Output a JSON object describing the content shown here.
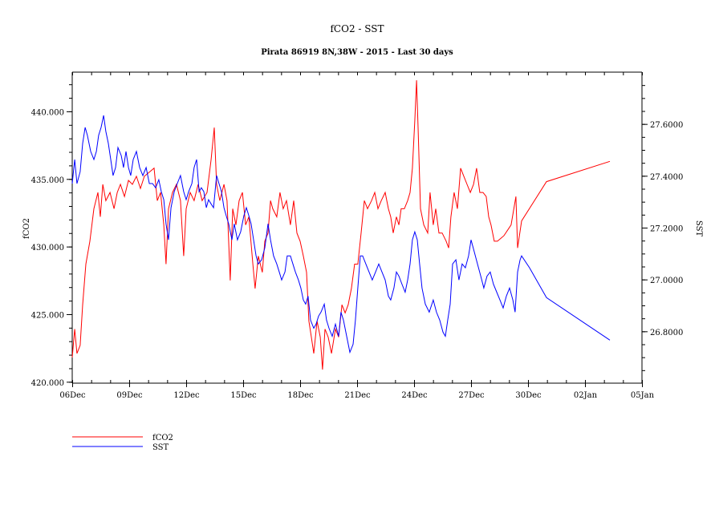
{
  "chart_data": {
    "type": "line",
    "title": "fCO2 - SST",
    "subtitle": "Pirata 86919 8N,38W - 2015 - Last 30 days",
    "xlabel": "",
    "ylabel": "fCO2",
    "y2label": "SST",
    "x_unit": "days since 06Dec",
    "xlim": [
      0,
      30
    ],
    "ylim": [
      419.9,
      442.9
    ],
    "y2lim": [
      26.6,
      27.8
    ],
    "x_ticks": [
      {
        "day": 0,
        "label": "06Dec"
      },
      {
        "day": 3,
        "label": "09Dec"
      },
      {
        "day": 6,
        "label": "12Dec"
      },
      {
        "day": 9,
        "label": "15Dec"
      },
      {
        "day": 12,
        "label": "18Dec"
      },
      {
        "day": 15,
        "label": "21Dec"
      },
      {
        "day": 18,
        "label": "24Dec"
      },
      {
        "day": 21,
        "label": "27Dec"
      },
      {
        "day": 24,
        "label": "30Dec"
      },
      {
        "day": 27,
        "label": "02Jan"
      },
      {
        "day": 30,
        "label": "05Jan"
      }
    ],
    "y_ticks": [
      {
        "value": 420,
        "label": "420.000"
      },
      {
        "value": 425,
        "label": "425.000"
      },
      {
        "value": 430,
        "label": "430.000"
      },
      {
        "value": 435,
        "label": "435.000"
      },
      {
        "value": 440,
        "label": "440.000"
      }
    ],
    "y2_ticks": [
      {
        "value": 26.8,
        "label": "26.8000"
      },
      {
        "value": 27.0,
        "label": "27.0000"
      },
      {
        "value": 27.2,
        "label": "27.2000"
      },
      {
        "value": 27.4,
        "label": "27.4000"
      },
      {
        "value": 27.6,
        "label": "27.6000"
      }
    ],
    "legend_position": "bottom-left",
    "grid": false,
    "series": [
      {
        "name": "fCO2",
        "axis": "left",
        "color": "#ff0000",
        "x": [
          0,
          0.13,
          0.25,
          0.42,
          0.55,
          0.72,
          0.93,
          1.14,
          1.35,
          1.48,
          1.61,
          1.77,
          1.99,
          2.2,
          2.37,
          2.54,
          2.75,
          2.96,
          3.17,
          3.38,
          3.59,
          3.8,
          4.06,
          4.31,
          4.48,
          4.65,
          4.82,
          4.94,
          5.07,
          5.28,
          5.49,
          5.7,
          5.87,
          6.0,
          6.21,
          6.42,
          6.63,
          6.84,
          7.1,
          7.31,
          7.48,
          7.6,
          7.77,
          7.99,
          8.15,
          8.32,
          8.45,
          8.62,
          8.79,
          8.96,
          9.13,
          9.3,
          9.51,
          9.63,
          9.8,
          10.01,
          10.14,
          10.31,
          10.44,
          10.56,
          10.77,
          10.94,
          11.11,
          11.28,
          11.49,
          11.66,
          11.83,
          12.0,
          12.17,
          12.34,
          12.46,
          12.59,
          12.72,
          12.89,
          13.06,
          13.18,
          13.31,
          13.48,
          13.65,
          13.86,
          14.03,
          14.2,
          14.37,
          14.53,
          14.7,
          14.87,
          15.04,
          15.21,
          15.38,
          15.55,
          15.76,
          15.93,
          16.1,
          16.27,
          16.48,
          16.65,
          16.77,
          16.9,
          17.07,
          17.2,
          17.32,
          17.49,
          17.66,
          17.79,
          17.91,
          18.04,
          18.13,
          18.21,
          18.34,
          18.51,
          18.72,
          18.84,
          19.01,
          19.14,
          19.31,
          19.48,
          19.69,
          19.82,
          19.94,
          20.11,
          20.28,
          20.45,
          20.62,
          20.79,
          20.96,
          21.13,
          21.29,
          21.46,
          21.63,
          21.8,
          21.93,
          22.05,
          22.22,
          22.39,
          22.73,
          23.11,
          23.36,
          23.45,
          23.66,
          24.97,
          28.31
        ],
        "y": [
          421.8,
          423.9,
          422.1,
          422.7,
          425.7,
          428.7,
          430.4,
          432.8,
          434.0,
          432.2,
          434.6,
          433.4,
          434.0,
          432.8,
          434.0,
          434.6,
          433.7,
          434.9,
          434.6,
          435.2,
          434.3,
          435.2,
          435.5,
          435.8,
          433.4,
          434.0,
          431.6,
          428.7,
          432.8,
          434.0,
          434.6,
          433.4,
          429.3,
          432.8,
          434.0,
          433.4,
          434.6,
          433.4,
          434.0,
          436.4,
          438.8,
          434.6,
          433.4,
          434.6,
          433.4,
          427.5,
          432.8,
          431.6,
          433.4,
          434.0,
          431.6,
          432.2,
          428.7,
          426.9,
          429.3,
          428.1,
          430.4,
          431.0,
          433.4,
          432.8,
          432.2,
          434.0,
          432.8,
          433.4,
          431.6,
          433.4,
          431.0,
          430.4,
          429.3,
          428.1,
          424.5,
          423.3,
          422.1,
          424.5,
          423.3,
          420.9,
          423.9,
          423.3,
          422.1,
          423.9,
          423.3,
          425.7,
          425.1,
          425.7,
          426.9,
          428.7,
          428.7,
          431.0,
          433.4,
          432.8,
          433.4,
          434.0,
          432.8,
          433.4,
          434.0,
          432.8,
          432.2,
          431.0,
          432.2,
          431.6,
          432.8,
          432.8,
          433.4,
          434.0,
          435.8,
          439.3,
          442.3,
          438.8,
          432.8,
          431.6,
          431.0,
          434.0,
          431.6,
          432.8,
          431.0,
          431.0,
          430.4,
          429.9,
          432.2,
          434.0,
          432.8,
          435.8,
          435.2,
          434.6,
          434.0,
          434.6,
          435.8,
          434.0,
          434.0,
          433.7,
          432.2,
          431.6,
          430.4,
          430.4,
          430.8,
          431.6,
          433.7,
          429.9,
          431.9,
          434.8,
          436.3
        ]
      },
      {
        "name": "SST",
        "axis": "right",
        "color": "#0000ff",
        "x": [
          0,
          0.13,
          0.25,
          0.42,
          0.55,
          0.68,
          0.8,
          0.97,
          1.14,
          1.27,
          1.39,
          1.52,
          1.65,
          1.77,
          1.9,
          2.03,
          2.15,
          2.28,
          2.41,
          2.58,
          2.7,
          2.83,
          2.96,
          3.08,
          3.21,
          3.38,
          3.55,
          3.72,
          3.89,
          4.06,
          4.23,
          4.39,
          4.56,
          4.69,
          4.82,
          4.94,
          5.07,
          5.2,
          5.37,
          5.53,
          5.7,
          5.87,
          6.0,
          6.13,
          6.3,
          6.42,
          6.55,
          6.68,
          6.8,
          6.93,
          7.06,
          7.18,
          7.31,
          7.44,
          7.6,
          7.73,
          7.86,
          7.99,
          8.11,
          8.24,
          8.41,
          8.53,
          8.7,
          8.87,
          9.04,
          9.17,
          9.3,
          9.42,
          9.55,
          9.68,
          9.8,
          9.97,
          10.14,
          10.31,
          10.44,
          10.6,
          10.77,
          10.9,
          11.03,
          11.2,
          11.32,
          11.49,
          11.62,
          11.75,
          11.91,
          12.04,
          12.17,
          12.29,
          12.42,
          12.55,
          12.72,
          12.84,
          12.97,
          13.1,
          13.27,
          13.39,
          13.52,
          13.69,
          13.86,
          14.03,
          14.15,
          14.28,
          14.45,
          14.62,
          14.79,
          14.91,
          15.04,
          15.17,
          15.29,
          15.46,
          15.63,
          15.8,
          15.97,
          16.14,
          16.31,
          16.48,
          16.65,
          16.77,
          16.94,
          17.07,
          17.2,
          17.36,
          17.53,
          17.66,
          17.79,
          17.91,
          18.04,
          18.17,
          18.29,
          18.42,
          18.59,
          18.8,
          19.01,
          19.18,
          19.35,
          19.52,
          19.65,
          19.77,
          19.9,
          20.03,
          20.2,
          20.36,
          20.53,
          20.7,
          20.87,
          21.0,
          21.17,
          21.34,
          21.51,
          21.67,
          21.84,
          22.01,
          22.18,
          22.35,
          22.52,
          22.69,
          22.86,
          23.03,
          23.2,
          23.32,
          23.45,
          23.58,
          23.66,
          24.08,
          24.97,
          28.31
        ],
        "y": [
          27.37,
          27.463,
          27.37,
          27.416,
          27.525,
          27.587,
          27.556,
          27.494,
          27.463,
          27.494,
          27.556,
          27.587,
          27.633,
          27.571,
          27.525,
          27.463,
          27.401,
          27.432,
          27.509,
          27.478,
          27.432,
          27.494,
          27.432,
          27.401,
          27.463,
          27.494,
          27.432,
          27.401,
          27.432,
          27.37,
          27.37,
          27.354,
          27.385,
          27.339,
          27.308,
          27.215,
          27.153,
          27.277,
          27.339,
          27.37,
          27.401,
          27.339,
          27.308,
          27.339,
          27.37,
          27.432,
          27.463,
          27.339,
          27.354,
          27.339,
          27.277,
          27.308,
          27.292,
          27.277,
          27.401,
          27.37,
          27.339,
          27.277,
          27.246,
          27.215,
          27.153,
          27.215,
          27.153,
          27.184,
          27.246,
          27.277,
          27.246,
          27.215,
          27.153,
          27.091,
          27.06,
          27.076,
          27.122,
          27.215,
          27.153,
          27.091,
          27.06,
          27.029,
          26.998,
          27.029,
          27.091,
          27.091,
          27.06,
          27.029,
          26.998,
          26.967,
          26.921,
          26.905,
          26.936,
          26.843,
          26.812,
          26.828,
          26.859,
          26.874,
          26.905,
          26.843,
          26.812,
          26.781,
          26.828,
          26.781,
          26.874,
          26.843,
          26.781,
          26.719,
          26.75,
          26.843,
          26.967,
          27.091,
          27.091,
          27.06,
          27.029,
          26.998,
          27.029,
          27.06,
          27.029,
          26.998,
          26.936,
          26.921,
          26.967,
          27.029,
          27.013,
          26.982,
          26.951,
          26.998,
          27.06,
          27.153,
          27.184,
          27.153,
          27.06,
          26.967,
          26.905,
          26.874,
          26.921,
          26.874,
          26.843,
          26.797,
          26.781,
          26.843,
          26.905,
          27.06,
          27.076,
          26.998,
          27.06,
          27.045,
          27.091,
          27.153,
          27.107,
          27.06,
          27.013,
          26.967,
          27.013,
          27.029,
          26.982,
          26.951,
          26.921,
          26.89,
          26.936,
          26.967,
          26.921,
          26.874,
          27.029,
          27.076,
          27.091,
          27.045,
          26.93,
          26.766
        ]
      }
    ]
  }
}
